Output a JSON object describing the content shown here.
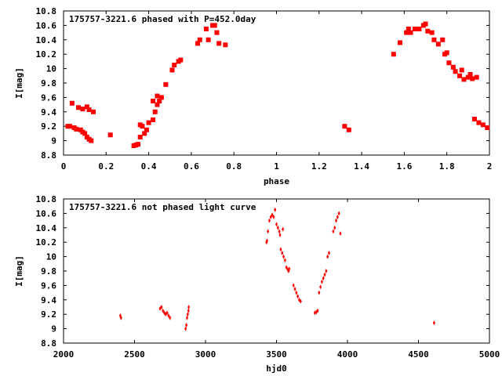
{
  "colors": {
    "points": "#ff0000",
    "axes": "#000000",
    "background": "#ffffff"
  },
  "chart_data": [
    {
      "type": "scatter",
      "title": "175757-3221.6 phased with P=452.0day",
      "xlabel": "phase",
      "ylabel": "I[mag]",
      "xlim": [
        0,
        2
      ],
      "ylim": [
        10.8,
        8.8
      ],
      "y_inverted": true,
      "grid": false,
      "marker": "filled-square",
      "xticks": [
        "0",
        "0.2",
        "0.4",
        "0.6",
        "0.8",
        "1",
        "1.2",
        "1.4",
        "1.6",
        "1.8",
        "2"
      ],
      "yticks": [
        "8.8",
        "9",
        "9.2",
        "9.4",
        "9.6",
        "9.8",
        "10",
        "10.2",
        "10.4",
        "10.6",
        "10.8"
      ],
      "series": [
        {
          "x": [
            0.02,
            0.03,
            0.05,
            0.06,
            0.08,
            0.09,
            0.1,
            0.11,
            0.12,
            0.13,
            0.04,
            0.07,
            0.09,
            0.11,
            0.12,
            0.14,
            0.22,
            0.33,
            0.34,
            0.35,
            0.36,
            0.36,
            0.37,
            0.38,
            0.39,
            0.4,
            0.42,
            0.43,
            0.44,
            0.45,
            0.46,
            0.48,
            0.51,
            0.52,
            0.54,
            0.55,
            0.63,
            0.64,
            0.67,
            0.68,
            0.7,
            0.71,
            0.72,
            0.73,
            0.76,
            1.32,
            1.34,
            1.55,
            1.58,
            1.61,
            1.62,
            1.63,
            1.65,
            1.67,
            1.69,
            1.7,
            1.71,
            1.73,
            1.74,
            1.76,
            1.78,
            1.79,
            1.81,
            1.83,
            1.84,
            1.86,
            1.88,
            1.9,
            1.92,
            1.93,
            1.95,
            1.97,
            1.99,
            0.42,
            0.44,
            1.8,
            1.87,
            1.91,
            1.94
          ],
          "y": [
            9.2,
            9.2,
            9.18,
            9.16,
            9.15,
            9.12,
            9.1,
            9.05,
            9.02,
            9.0,
            9.52,
            9.46,
            9.44,
            9.47,
            9.43,
            9.4,
            9.08,
            8.93,
            8.94,
            8.95,
            9.05,
            9.22,
            9.2,
            9.1,
            9.15,
            9.25,
            9.29,
            9.4,
            9.5,
            9.55,
            9.6,
            9.78,
            9.98,
            10.05,
            10.1,
            10.12,
            10.35,
            10.4,
            10.55,
            10.4,
            10.6,
            10.6,
            10.5,
            10.35,
            10.33,
            9.2,
            9.15,
            10.2,
            10.36,
            10.5,
            10.55,
            10.5,
            10.55,
            10.55,
            10.6,
            10.62,
            10.52,
            10.5,
            10.4,
            10.34,
            10.4,
            10.2,
            10.08,
            10.02,
            9.96,
            9.9,
            9.85,
            9.88,
            9.86,
            9.3,
            9.25,
            9.22,
            9.18,
            9.55,
            9.62,
            10.22,
            9.98,
            9.92,
            9.88
          ]
        }
      ]
    },
    {
      "type": "scatter",
      "title": "175757-3221.6 not phased light curve",
      "xlabel": "hjd0",
      "ylabel": "I[mag]",
      "xlim": [
        2000,
        5000
      ],
      "ylim": [
        10.8,
        8.8
      ],
      "y_inverted": true,
      "grid": false,
      "marker": "small-diamond",
      "xticks": [
        "2000",
        "2500",
        "3000",
        "3500",
        "4000",
        "4500",
        "5000"
      ],
      "yticks": [
        "8.8",
        "9",
        "9.2",
        "9.4",
        "9.6",
        "9.8",
        "10",
        "10.2",
        "10.4",
        "10.6",
        "10.8"
      ],
      "series": [
        {
          "x": [
            2400,
            2405,
            2680,
            2690,
            2700,
            2710,
            2720,
            2730,
            2740,
            2750,
            2860,
            2865,
            2870,
            2875,
            2880,
            2882,
            3430,
            3433,
            3440,
            3450,
            3460,
            3470,
            3480,
            3490,
            3500,
            3510,
            3520,
            3525,
            3530,
            3540,
            3545,
            3550,
            3560,
            3570,
            3580,
            3585,
            3590,
            3620,
            3630,
            3640,
            3650,
            3660,
            3670,
            3770,
            3780,
            3790,
            3800,
            3810,
            3820,
            3830,
            3840,
            3850,
            3860,
            3870,
            3900,
            3910,
            3920,
            3930,
            3940,
            3950,
            4610
          ],
          "y": [
            9.18,
            9.15,
            9.28,
            9.3,
            9.25,
            9.22,
            9.2,
            9.22,
            9.18,
            9.15,
            9.0,
            9.05,
            9.15,
            9.2,
            9.25,
            9.3,
            10.2,
            10.22,
            10.35,
            10.5,
            10.55,
            10.58,
            10.55,
            10.65,
            10.45,
            10.4,
            10.35,
            10.3,
            10.1,
            10.05,
            10.38,
            10.0,
            9.95,
            9.85,
            9.82,
            9.8,
            9.83,
            9.6,
            9.55,
            9.5,
            9.45,
            9.4,
            9.38,
            9.22,
            9.23,
            9.25,
            9.5,
            9.58,
            9.65,
            9.7,
            9.75,
            9.8,
            10.0,
            10.05,
            10.35,
            10.4,
            10.5,
            10.55,
            10.6,
            10.32,
            9.08
          ]
        }
      ]
    }
  ]
}
